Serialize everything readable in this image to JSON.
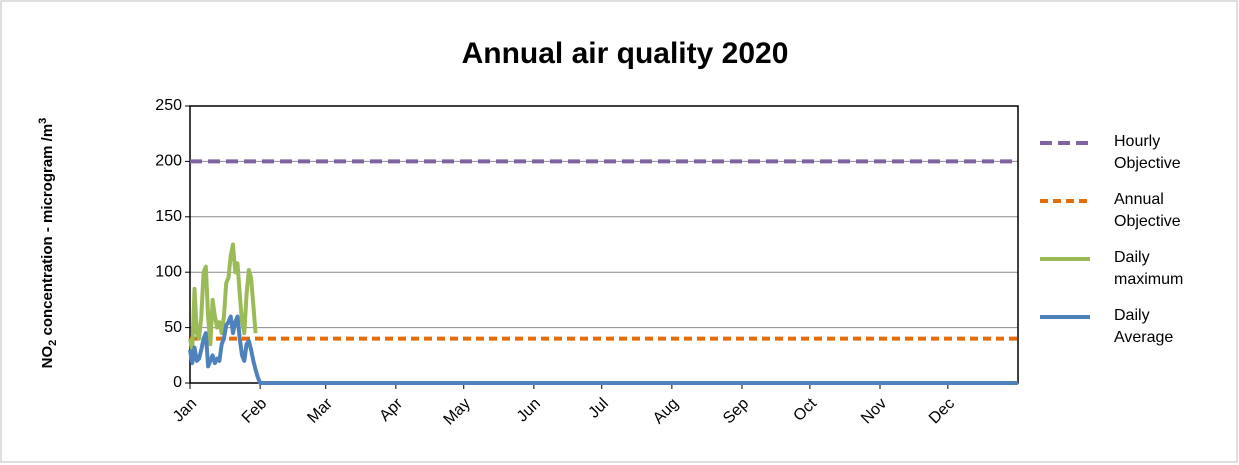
{
  "chart_data": {
    "type": "line",
    "title": "Annual air quality 2020",
    "y_label": [
      "NO",
      "2",
      " concentration - microgram /m",
      "3"
    ],
    "xlim": [
      1,
      367
    ],
    "xticks": [
      {
        "value": 1,
        "label": "Jan"
      },
      {
        "value": 32,
        "label": "Feb"
      },
      {
        "value": 61,
        "label": "Mar"
      },
      {
        "value": 92,
        "label": "Apr"
      },
      {
        "value": 122,
        "label": "May"
      },
      {
        "value": 153,
        "label": "Jun"
      },
      {
        "value": 183,
        "label": "Jul"
      },
      {
        "value": 214,
        "label": "Aug"
      },
      {
        "value": 245,
        "label": "Sep"
      },
      {
        "value": 275,
        "label": "Oct"
      },
      {
        "value": 306,
        "label": "Nov"
      },
      {
        "value": 336,
        "label": "Dec"
      }
    ],
    "ylim": [
      0,
      250
    ],
    "yticks": [
      0,
      50,
      100,
      150,
      200,
      250
    ],
    "grid": true,
    "legend": "right",
    "series": [
      {
        "name": "Hourly Objective",
        "color": "#8064a2",
        "dash": true,
        "x": [
          1,
          367
        ],
        "values": [
          200,
          200
        ]
      },
      {
        "name": "Annual Objective",
        "color": "#e46c0a",
        "dash": true,
        "x": [
          1,
          367
        ],
        "values": [
          40,
          40
        ]
      },
      {
        "name": "Daily maximum",
        "color": "#9bbb59",
        "x": [
          1,
          2,
          3,
          4,
          5,
          6,
          7,
          8,
          9,
          10,
          11,
          12,
          13,
          14,
          15,
          16,
          17,
          18,
          19,
          20,
          21,
          22,
          23,
          24,
          25,
          26,
          27,
          28,
          29,
          30
        ],
        "values": [
          40,
          30,
          85,
          45,
          40,
          60,
          100,
          105,
          60,
          35,
          75,
          60,
          50,
          55,
          45,
          60,
          90,
          95,
          115,
          125,
          100,
          108,
          80,
          55,
          45,
          80,
          102,
          95,
          70,
          45
        ]
      },
      {
        "name": "Daily Average",
        "color": "#4f81bd",
        "x": [
          1,
          2,
          3,
          4,
          5,
          6,
          7,
          8,
          9,
          10,
          11,
          12,
          13,
          14,
          15,
          16,
          17,
          18,
          19,
          20,
          21,
          22,
          23,
          24,
          25,
          26,
          27,
          28,
          29,
          30,
          31,
          32,
          367
        ],
        "values": [
          30,
          18,
          32,
          20,
          22,
          30,
          40,
          45,
          15,
          20,
          25,
          18,
          22,
          20,
          35,
          40,
          52,
          55,
          60,
          45,
          55,
          60,
          40,
          25,
          20,
          35,
          38,
          30,
          20,
          12,
          5,
          0,
          0
        ]
      }
    ]
  }
}
